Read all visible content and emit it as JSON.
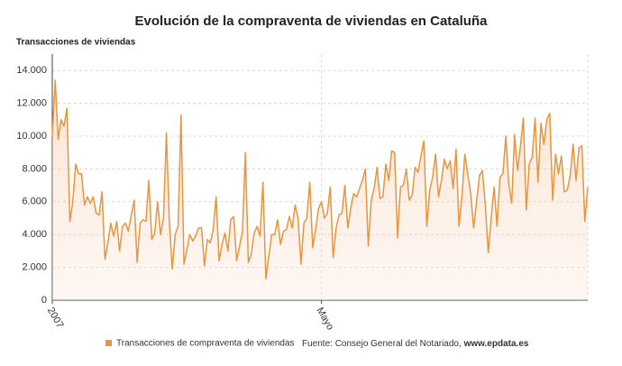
{
  "chart_data": {
    "type": "line",
    "title": "Evolución de la compraventa de viviendas en Cataluña",
    "y_axis_title": "Transacciones de viviendas",
    "source": "Fuente: Consejo General del Notariado,",
    "source_site": "www.epdata.es",
    "categories": [
      "2007",
      null,
      null,
      null,
      null,
      null,
      null,
      null,
      null,
      null,
      null,
      null,
      null,
      null,
      null,
      null,
      null,
      null,
      null,
      null,
      null,
      null,
      null,
      null,
      null,
      null,
      null,
      null,
      null,
      null,
      null,
      null,
      null,
      null,
      null,
      null,
      null,
      null,
      null,
      null,
      null,
      null,
      null,
      null,
      null,
      null,
      null,
      null,
      null,
      null,
      null,
      null,
      null,
      null,
      null,
      null,
      null,
      null,
      null,
      null,
      null,
      null,
      null,
      null,
      null,
      null,
      null,
      null,
      null,
      null,
      null,
      null,
      null,
      null,
      null,
      null,
      null,
      null,
      null,
      null,
      null,
      null,
      null,
      null,
      null,
      null,
      null,
      null,
      null,
      null,
      null,
      null,
      "Mayo",
      null,
      null,
      null,
      null,
      null,
      null,
      null,
      null,
      null,
      null,
      null,
      null,
      null,
      null,
      null,
      null,
      null,
      null,
      null,
      null,
      null,
      null,
      null,
      null,
      null,
      null,
      null,
      null,
      null,
      null,
      null,
      null,
      null,
      null,
      null,
      null,
      null,
      null,
      null,
      null,
      null,
      null,
      null,
      null,
      null,
      null,
      null,
      null,
      null,
      null,
      null,
      null,
      null,
      null,
      null,
      null,
      null,
      null,
      null,
      null,
      null,
      null,
      null,
      null,
      null,
      null,
      null,
      null,
      null,
      null,
      null,
      null,
      null,
      null,
      null,
      null,
      null,
      null,
      null,
      null,
      null,
      null,
      null,
      null,
      null,
      null,
      null,
      null,
      null,
      null,
      null
    ],
    "series": [
      {
        "name": "Transacciones de compraventa de viviendas",
        "color": "#e8953f",
        "values": [
          10000,
          13400,
          9800,
          11000,
          10600,
          11700,
          4800,
          6000,
          8300,
          7700,
          7700,
          5800,
          6300,
          5900,
          6300,
          5300,
          5200,
          6600,
          2500,
          3500,
          4700,
          3900,
          4800,
          3000,
          4500,
          4700,
          4200,
          5200,
          6100,
          2300,
          4700,
          4900,
          4800,
          7300,
          3700,
          4100,
          6000,
          4000,
          5000,
          10200,
          4800,
          1900,
          4000,
          4500,
          11300,
          2200,
          3100,
          4000,
          3600,
          3900,
          4400,
          4400,
          2100,
          3700,
          3500,
          4300,
          6300,
          2400,
          3400,
          4100,
          3000,
          4900,
          5100,
          2400,
          3300,
          4200,
          9000,
          2300,
          2800,
          4100,
          4500,
          3900,
          7200,
          1300,
          2700,
          4000,
          4000,
          4900,
          3400,
          4200,
          4300,
          5100,
          4400,
          5800,
          5000,
          2200,
          4700,
          5000,
          7200,
          3200,
          4300,
          5600,
          6000,
          5000,
          5300,
          6900,
          2600,
          4400,
          5200,
          5300,
          7000,
          4400,
          5600,
          6500,
          6300,
          6800,
          7300,
          8000,
          3300,
          6100,
          6800,
          8100,
          6200,
          6300,
          8300,
          7300,
          9100,
          9000,
          3800,
          6900,
          7000,
          8000,
          6100,
          6400,
          8100,
          7800,
          8800,
          9700,
          4500,
          6700,
          7500,
          8900,
          6300,
          7300,
          8600,
          8000,
          8500,
          6800,
          9200,
          4500,
          6300,
          8900,
          7700,
          6500,
          4400,
          6000,
          7600,
          7900,
          5800,
          2900,
          5000,
          6900,
          4500,
          7500,
          7700,
          10000,
          7100,
          5900,
          10100,
          7900,
          9400,
          11100,
          5500,
          8300,
          8700,
          11100,
          7200,
          10800,
          9500,
          11000,
          11400,
          6100,
          8900,
          7700,
          8800,
          6600,
          6700,
          7600,
          9500,
          7300,
          9300,
          9400,
          4800,
          6900
        ]
      }
    ],
    "ylim": [
      0,
      15000
    ],
    "yticks": [
      0,
      {
        "value": 2000,
        "label": "2.000"
      },
      {
        "value": 4000,
        "label": "4.000"
      },
      {
        "value": 6000,
        "label": "6.000"
      },
      {
        "value": 8000,
        "label": "8.000"
      },
      {
        "value": 10000,
        "label": "10.000"
      },
      {
        "value": 12000,
        "label": "12.000"
      },
      {
        "value": 14000,
        "label": "14.000"
      }
    ],
    "grid": true
  }
}
